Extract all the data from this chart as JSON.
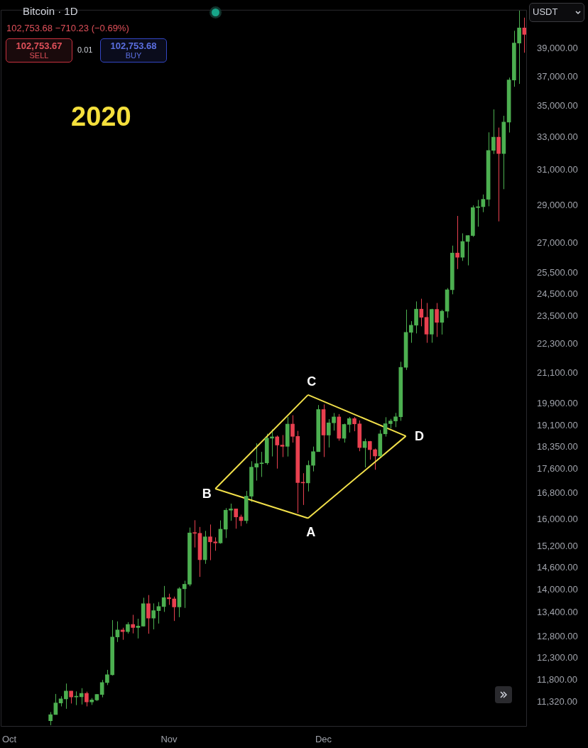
{
  "chart_data": {
    "type": "candlestick",
    "title": "Bitcoin · 1D",
    "subtitle": "102,753.68 −710.23 (−0.69%)",
    "ylabel": "USDT",
    "x": [
      "2020-10-09",
      "2020-10-10",
      "2020-10-11",
      "2020-10-12",
      "2020-10-13",
      "2020-10-14",
      "2020-10-15",
      "2020-10-16",
      "2020-10-17",
      "2020-10-18",
      "2020-10-19",
      "2020-10-20",
      "2020-10-21",
      "2020-10-22",
      "2020-10-23",
      "2020-10-24",
      "2020-10-25",
      "2020-10-26",
      "2020-10-27",
      "2020-10-28",
      "2020-10-29",
      "2020-10-30",
      "2020-10-31",
      "2020-11-01",
      "2020-11-02",
      "2020-11-03",
      "2020-11-04",
      "2020-11-05",
      "2020-11-06",
      "2020-11-07",
      "2020-11-08",
      "2020-11-09",
      "2020-11-10",
      "2020-11-11",
      "2020-11-12",
      "2020-11-13",
      "2020-11-14",
      "2020-11-15",
      "2020-11-16",
      "2020-11-17",
      "2020-11-18",
      "2020-11-19",
      "2020-11-20",
      "2020-11-21",
      "2020-11-22",
      "2020-11-23",
      "2020-11-24",
      "2020-11-25",
      "2020-11-26",
      "2020-11-27",
      "2020-11-28",
      "2020-11-29",
      "2020-11-30",
      "2020-12-01",
      "2020-12-02",
      "2020-12-03",
      "2020-12-04",
      "2020-12-05",
      "2020-12-06",
      "2020-12-07",
      "2020-12-08",
      "2020-12-09",
      "2020-12-10",
      "2020-12-11",
      "2020-12-12",
      "2020-12-13",
      "2020-12-14",
      "2020-12-15",
      "2020-12-16",
      "2020-12-17",
      "2020-12-18",
      "2020-12-19",
      "2020-12-20",
      "2020-12-21",
      "2020-12-22",
      "2020-12-23",
      "2020-12-24",
      "2020-12-25",
      "2020-12-26",
      "2020-12-27",
      "2020-12-28",
      "2020-12-29",
      "2020-12-30",
      "2020-12-31",
      "2021-01-01",
      "2021-01-02",
      "2021-01-03",
      "2021-01-04",
      "2021-01-05",
      "2021-01-06",
      "2021-01-07",
      "2021-01-08",
      "2021-01-09"
    ],
    "ohlc": [
      [
        10923,
        11104,
        10830,
        11050
      ],
      [
        11050,
        11491,
        11050,
        11296
      ],
      [
        11296,
        11441,
        11223,
        11384
      ],
      [
        11384,
        11720,
        11172,
        11555
      ],
      [
        11555,
        11555,
        11285,
        11425
      ],
      [
        11425,
        11547,
        11250,
        11430
      ],
      [
        11430,
        11617,
        11264,
        11505
      ],
      [
        11505,
        11541,
        11223,
        11319
      ],
      [
        11319,
        11402,
        11255,
        11361
      ],
      [
        11361,
        11490,
        11339,
        11480
      ],
      [
        11480,
        11800,
        11418,
        11742
      ],
      [
        11742,
        12028,
        11686,
        11917
      ],
      [
        11917,
        13217,
        11900,
        12800
      ],
      [
        12800,
        13185,
        12680,
        12970
      ],
      [
        12970,
        13027,
        12733,
        12931
      ],
      [
        12931,
        13165,
        12884,
        13108
      ],
      [
        13108,
        13350,
        12888,
        13031
      ],
      [
        13031,
        13250,
        12765,
        13068
      ],
      [
        13068,
        13789,
        13055,
        13636
      ],
      [
        13636,
        13859,
        12880,
        13266
      ],
      [
        13266,
        13642,
        12987,
        13455
      ],
      [
        13455,
        13677,
        13130,
        13560
      ],
      [
        13560,
        14100,
        13423,
        13791
      ],
      [
        13791,
        13895,
        13603,
        13761
      ],
      [
        13761,
        13818,
        13195,
        13550
      ],
      [
        13550,
        14067,
        13290,
        14024
      ],
      [
        14024,
        14240,
        13525,
        14146
      ],
      [
        14146,
        15750,
        14093,
        15590
      ],
      [
        15590,
        15970,
        15166,
        15579
      ],
      [
        15579,
        15767,
        14344,
        14818
      ],
      [
        14818,
        15650,
        14703,
        15475
      ],
      [
        15475,
        15840,
        14805,
        15328
      ],
      [
        15328,
        15460,
        15072,
        15297
      ],
      [
        15297,
        15965,
        15275,
        15701
      ],
      [
        15701,
        16340,
        15440,
        16276
      ],
      [
        16276,
        16480,
        15952,
        16317
      ],
      [
        16317,
        16317,
        15715,
        16069
      ],
      [
        16069,
        16139,
        15793,
        15957
      ],
      [
        15957,
        16880,
        15870,
        16713
      ],
      [
        16713,
        17858,
        16531,
        17659
      ],
      [
        17659,
        18476,
        17214,
        17777
      ],
      [
        17777,
        18179,
        17335,
        17802
      ],
      [
        17802,
        18815,
        17740,
        18655
      ],
      [
        18655,
        18965,
        18021,
        18703
      ],
      [
        18703,
        18750,
        17610,
        18414
      ],
      [
        18414,
        18766,
        18000,
        18368
      ],
      [
        18368,
        19418,
        18018,
        19160
      ],
      [
        19160,
        19484,
        18500,
        18719
      ],
      [
        18719,
        18915,
        16188,
        17149
      ],
      [
        17149,
        17457,
        16438,
        17139
      ],
      [
        17139,
        17880,
        16865,
        17720
      ],
      [
        17720,
        18360,
        17517,
        18185
      ],
      [
        18185,
        19863,
        18185,
        19696
      ],
      [
        19696,
        19888,
        18001,
        18765
      ],
      [
        18765,
        19342,
        18330,
        19205
      ],
      [
        19205,
        19566,
        18925,
        19422
      ],
      [
        19422,
        19527,
        18565,
        18651
      ],
      [
        18651,
        19177,
        18500,
        19148
      ],
      [
        19148,
        19420,
        18857,
        19360
      ],
      [
        19360,
        19420,
        18902,
        19167
      ],
      [
        19167,
        19294,
        18200,
        18325
      ],
      [
        18325,
        18638,
        17650,
        18541
      ],
      [
        18541,
        18557,
        17911,
        18254
      ],
      [
        18254,
        18292,
        17572,
        18036
      ],
      [
        18036,
        18948,
        18020,
        18808
      ],
      [
        18808,
        19411,
        18711,
        19175
      ],
      [
        19175,
        19349,
        19000,
        19273
      ],
      [
        19273,
        19570,
        19050,
        19426
      ],
      [
        19426,
        21560,
        19278,
        21335
      ],
      [
        21335,
        23800,
        21230,
        22797
      ],
      [
        22797,
        23285,
        22350,
        23107
      ],
      [
        23107,
        24171,
        22750,
        23821
      ],
      [
        23821,
        24295,
        23060,
        23455
      ],
      [
        23455,
        24102,
        22350,
        22719
      ],
      [
        22719,
        23837,
        22353,
        23810
      ],
      [
        23810,
        24100,
        22600,
        23232
      ],
      [
        23232,
        23794,
        22703,
        23729
      ],
      [
        23729,
        24789,
        23433,
        24712
      ],
      [
        24712,
        26867,
        24500,
        26493
      ],
      [
        26493,
        28422,
        25700,
        26281
      ],
      [
        26281,
        27500,
        26101,
        27079
      ],
      [
        27079,
        27400,
        25880,
        27385
      ],
      [
        27385,
        28997,
        27320,
        28875
      ],
      [
        28875,
        29300,
        27850,
        28923
      ],
      [
        28923,
        29600,
        28625,
        29331
      ],
      [
        29331,
        33300,
        28946,
        32178
      ],
      [
        32176,
        34778,
        31962,
        33000
      ],
      [
        33000,
        33600,
        28130,
        31988
      ],
      [
        31989,
        34360,
        29900,
        33949
      ],
      [
        33950,
        36939,
        33288,
        36769
      ],
      [
        36769,
        40365,
        36300,
        39432
      ],
      [
        39432,
        41950,
        36500,
        40582
      ],
      [
        40586,
        41380,
        38720,
        40088
      ]
    ],
    "colors": [
      "#4caf50",
      "#4caf50",
      "#4caf50",
      "#4caf50",
      "#e8404f",
      "#4caf50",
      "#4caf50",
      "#e8404f",
      "#4caf50",
      "#4caf50",
      "#4caf50",
      "#4caf50",
      "#4caf50",
      "#4caf50",
      "#e8404f",
      "#4caf50",
      "#e8404f",
      "#4caf50",
      "#4caf50",
      "#e8404f",
      "#4caf50",
      "#4caf50",
      "#4caf50",
      "#e8404f",
      "#e8404f",
      "#4caf50",
      "#4caf50",
      "#4caf50",
      "#e8404f",
      "#e8404f",
      "#4caf50",
      "#e8404f",
      "#e8404f",
      "#4caf50",
      "#4caf50",
      "#4caf50",
      "#e8404f",
      "#e8404f",
      "#4caf50",
      "#4caf50",
      "#4caf50",
      "#4caf50",
      "#4caf50",
      "#4caf50",
      "#e8404f",
      "#e8404f",
      "#4caf50",
      "#e8404f",
      "#e8404f",
      "#e8404f",
      "#4caf50",
      "#4caf50",
      "#4caf50",
      "#e8404f",
      "#4caf50",
      "#4caf50",
      "#e8404f",
      "#4caf50",
      "#4caf50",
      "#e8404f",
      "#e8404f",
      "#4caf50",
      "#e8404f",
      "#e8404f",
      "#4caf50",
      "#4caf50",
      "#4caf50",
      "#4caf50",
      "#4caf50",
      "#4caf50",
      "#4caf50",
      "#4caf50",
      "#e8404f",
      "#e8404f",
      "#4caf50",
      "#e8404f",
      "#4caf50",
      "#4caf50",
      "#4caf50",
      "#e8404f",
      "#4caf50",
      "#4caf50",
      "#4caf50",
      "#4caf50",
      "#4caf50",
      "#4caf50",
      "#4caf50",
      "#e8404f",
      "#4caf50",
      "#4caf50",
      "#4caf50",
      "#4caf50",
      "#e8404f"
    ],
    "series": [
      {
        "type": "line",
        "color": "#f2e04a",
        "x": [
          "2020-11-10",
          "2020-11-28"
        ],
        "values": [
          16950,
          20250
        ]
      },
      {
        "type": "line",
        "color": "#f2e04a",
        "x": [
          "2020-11-28",
          "2020-12-17"
        ],
        "values": [
          20250,
          18730
        ]
      },
      {
        "type": "line",
        "color": "#f2e04a",
        "x": [
          "2020-11-10",
          "2020-11-28"
        ],
        "values": [
          16950,
          16030
        ]
      },
      {
        "type": "line",
        "color": "#f2e04a",
        "x": [
          "2020-11-28",
          "2020-12-17"
        ],
        "values": [
          16030,
          18730
        ]
      }
    ],
    "marker": "none",
    "log": true,
    "grid": false,
    "legend": false,
    "xlim": [
      "2020-09-29T08:00",
      "2021-01-09T12:00"
    ],
    "xticks": [
      {
        "value": "2020-10-01",
        "label": "Oct"
      },
      {
        "value": "2020-11-01",
        "label": "Nov"
      },
      {
        "value": "2020-12-01",
        "label": "Dec"
      }
    ],
    "ylim": [
      10800,
      42000
    ],
    "yticks": [
      {
        "value": 11320,
        "label": "11,320.00"
      },
      {
        "value": 11800,
        "label": "11,800.00"
      },
      {
        "value": 12300,
        "label": "12,300.00"
      },
      {
        "value": 12800,
        "label": "12,800.00"
      },
      {
        "value": 13400,
        "label": "13,400.00"
      },
      {
        "value": 14000,
        "label": "14,000.00"
      },
      {
        "value": 14600,
        "label": "14,600.00"
      },
      {
        "value": 15200,
        "label": "15,200.00"
      },
      {
        "value": 16000,
        "label": "16,000.00"
      },
      {
        "value": 16800,
        "label": "16,800.00"
      },
      {
        "value": 17600,
        "label": "17,600.00"
      },
      {
        "value": 18350,
        "label": "18,350.00"
      },
      {
        "value": 19100,
        "label": "19,100.00"
      },
      {
        "value": 19900,
        "label": "19,900.00"
      },
      {
        "value": 21100,
        "label": "21,100.00"
      },
      {
        "value": 22300,
        "label": "22,300.00"
      },
      {
        "value": 23500,
        "label": "23,500.00"
      },
      {
        "value": 24500,
        "label": "24,500.00"
      },
      {
        "value": 25500,
        "label": "25,500.00"
      },
      {
        "value": 27000,
        "label": "27,000.00"
      },
      {
        "value": 29000,
        "label": "29,000.00"
      },
      {
        "value": 31000,
        "label": "31,000.00"
      },
      {
        "value": 33000,
        "label": "33,000.00"
      },
      {
        "value": 35000,
        "label": "35,000.00"
      },
      {
        "value": 37000,
        "label": "37,000.00"
      },
      {
        "value": 39000,
        "label": "39,000.00"
      }
    ],
    "annotations": [
      "2020",
      "102,753.67",
      "SELL",
      "0.01",
      "102,753.68",
      "BUY",
      {
        "text": "A",
        "x": "2020-11-28",
        "y": 16030
      },
      {
        "text": "B",
        "x": "2020-11-10",
        "y": 16950
      },
      {
        "text": "C",
        "x": "2020-11-28",
        "y": 20250
      },
      {
        "text": "D",
        "x": "2020-12-17",
        "y": 18730
      }
    ]
  }
}
